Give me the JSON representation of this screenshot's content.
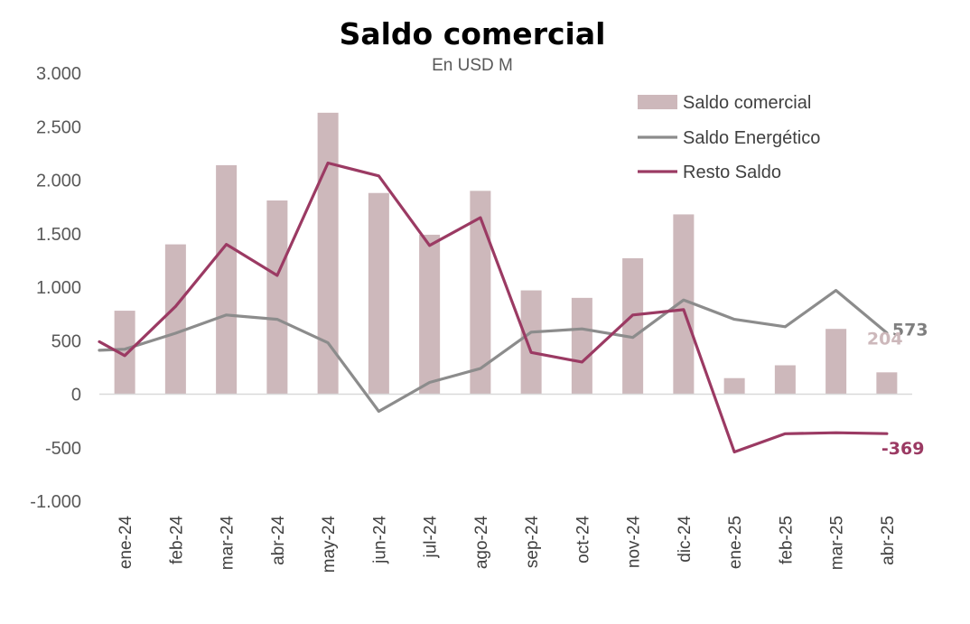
{
  "chart_data": {
    "type": "bar+line",
    "title": "Saldo comercial",
    "subtitle": "En USD M",
    "categories": [
      "ene-24",
      "feb-24",
      "mar-24",
      "abr-24",
      "may-24",
      "jun-24",
      "jul-24",
      "ago-24",
      "sep-24",
      "oct-24",
      "nov-24",
      "dic-24",
      "ene-25",
      "feb-25",
      "mar-25",
      "abr-25"
    ],
    "ylim": [
      -1000,
      3000
    ],
    "yticks": [
      3000,
      2500,
      2000,
      1500,
      1000,
      500,
      0,
      -500,
      -1000
    ],
    "ytick_labels": [
      "3.000",
      "2.500",
      "2.000",
      "1.500",
      "1.000",
      "500",
      "0",
      "-500",
      "-1.000"
    ],
    "grid": false,
    "legend_position": "top-right",
    "series": [
      {
        "name": "Saldo comercial",
        "kind": "bar",
        "color": "#cdb8bb",
        "values": [
          780,
          1400,
          2140,
          1810,
          2630,
          1880,
          1490,
          1900,
          970,
          900,
          1270,
          1680,
          150,
          270,
          610,
          204
        ]
      },
      {
        "name": "Saldo Energético",
        "kind": "line",
        "color": "#8c8c8c",
        "values": [
          420,
          570,
          740,
          700,
          480,
          -160,
          110,
          240,
          580,
          610,
          530,
          880,
          700,
          630,
          970,
          573
        ]
      },
      {
        "name": "Resto Saldo",
        "kind": "line",
        "color": "#9b3a63",
        "values": [
          360,
          820,
          1400,
          1110,
          2160,
          2040,
          1390,
          1650,
          390,
          300,
          740,
          790,
          -540,
          -370,
          -360,
          -369
        ]
      }
    ],
    "line_start_values": {
      "Saldo Energético": 410,
      "Resto Saldo": 490
    },
    "end_labels": [
      {
        "series": "Saldo Energético",
        "text": "573",
        "color": "#7f7f7f"
      },
      {
        "series": "Saldo comercial",
        "text": "204",
        "color": "#cdb8bb"
      },
      {
        "series": "Resto Saldo",
        "text": "-369",
        "color": "#9b3a63"
      }
    ]
  }
}
